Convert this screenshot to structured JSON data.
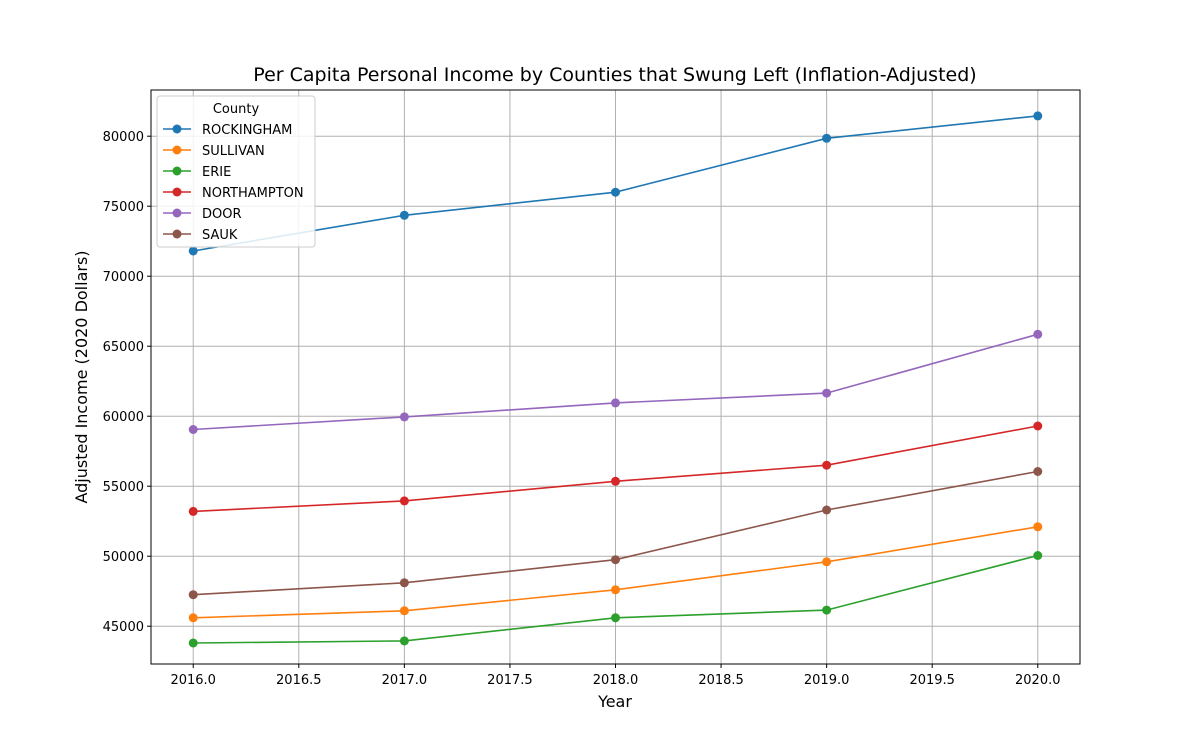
{
  "chart_data": {
    "type": "line",
    "title": "Per Capita Personal Income by Counties that Swung Left (Inflation-Adjusted)",
    "xlabel": "Year",
    "ylabel": "Adjusted Income (2020 Dollars)",
    "xlim": [
      2015.8,
      2020.2
    ],
    "ylim": [
      42300,
      83300
    ],
    "x_ticks": [
      2016.0,
      2016.5,
      2017.0,
      2017.5,
      2018.0,
      2018.5,
      2019.0,
      2019.5,
      2020.0
    ],
    "x_tick_labels": [
      "2016.0",
      "2016.5",
      "2017.0",
      "2017.5",
      "2018.0",
      "2018.5",
      "2019.0",
      "2019.5",
      "2020.0"
    ],
    "y_ticks": [
      45000,
      50000,
      55000,
      60000,
      65000,
      70000,
      75000,
      80000
    ],
    "y_tick_labels": [
      "45000",
      "50000",
      "55000",
      "60000",
      "65000",
      "70000",
      "75000",
      "80000"
    ],
    "grid": true,
    "legend_title": "County",
    "legend_position": "top-left",
    "x": [
      2016,
      2017,
      2018,
      2019,
      2020
    ],
    "series": [
      {
        "name": "ROCKINGHAM",
        "color": "#1f77b4",
        "values": [
          71800,
          74350,
          76000,
          79850,
          81450
        ]
      },
      {
        "name": "SULLIVAN",
        "color": "#ff7f0e",
        "values": [
          45600,
          46100,
          47600,
          49600,
          52100
        ]
      },
      {
        "name": "ERIE",
        "color": "#2ca02c",
        "values": [
          43800,
          43950,
          45600,
          46150,
          50050
        ]
      },
      {
        "name": "NORTHAMPTON",
        "color": "#d62728",
        "values": [
          53200,
          53950,
          55350,
          56500,
          59300
        ]
      },
      {
        "name": "DOOR",
        "color": "#9467bd",
        "values": [
          59050,
          59950,
          60950,
          61650,
          65850
        ]
      },
      {
        "name": "SAUK",
        "color": "#8c564b",
        "values": [
          47250,
          48100,
          49750,
          53300,
          56050
        ]
      }
    ]
  }
}
